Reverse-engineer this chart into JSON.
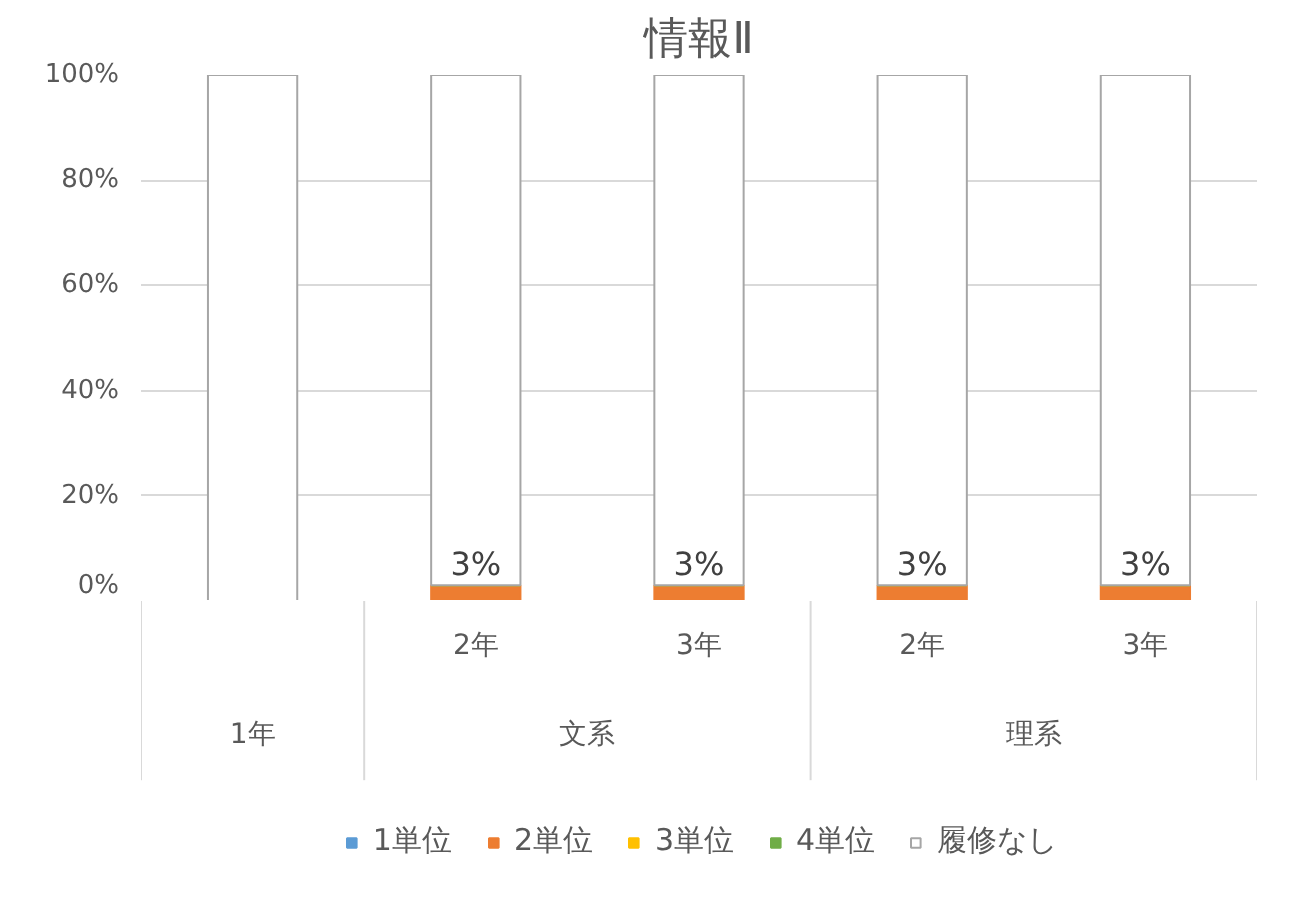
{
  "chart_data": {
    "type": "bar",
    "stacked": true,
    "title": "情報Ⅱ",
    "categories": [
      null,
      "2年",
      "3年",
      "2年",
      "3年"
    ],
    "annotations": [
      "1年",
      "文系",
      "理系"
    ],
    "series": [
      {
        "name": "1単位",
        "color": "#5b9bd5",
        "values": [
          0,
          0,
          0,
          0,
          0
        ]
      },
      {
        "name": "2単位",
        "color": "#ed7d31",
        "values": [
          0,
          3,
          3,
          3,
          3
        ],
        "value_labels": [
          null,
          "3%",
          "3%",
          "3%",
          "3%"
        ]
      },
      {
        "name": "3単位",
        "color": "#ffc000",
        "values": [
          0,
          0,
          0,
          0,
          0
        ]
      },
      {
        "name": "4単位",
        "color": "#70ad47",
        "values": [
          0,
          0,
          0,
          0,
          0
        ]
      },
      {
        "name": "履修なし",
        "color": "#ffffff",
        "values": [
          100,
          97,
          97,
          97,
          97
        ]
      }
    ],
    "ylim": [
      0,
      100
    ],
    "yticks": [
      {
        "value": 0,
        "label": "0%"
      },
      {
        "value": 20,
        "label": "20%"
      },
      {
        "value": 40,
        "label": "40%"
      },
      {
        "value": 60,
        "label": "60%"
      },
      {
        "value": 80,
        "label": "80%"
      },
      {
        "value": 100,
        "label": "100%"
      }
    ],
    "grid": "y",
    "legend": "bottom"
  }
}
